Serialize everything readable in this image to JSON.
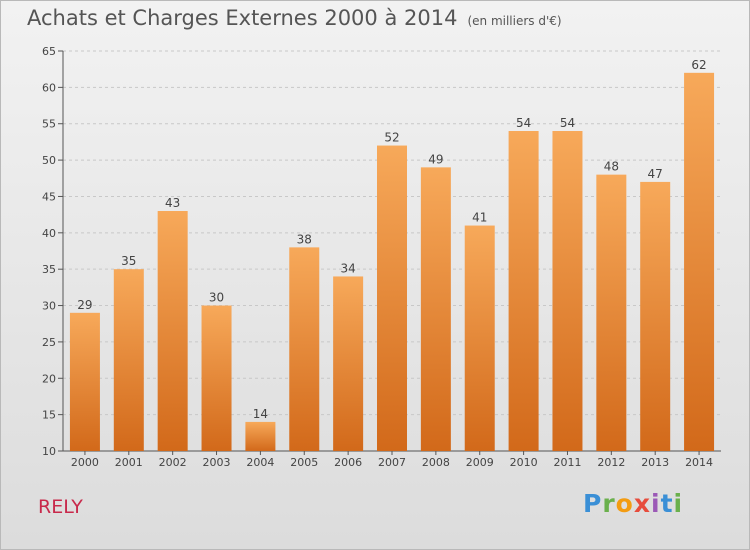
{
  "header": {
    "title": "Achats et Charges Externes 2000 à 2014",
    "subtitle": "(en milliers d'€)"
  },
  "footer": {
    "commune": "RELY",
    "logo_letters": [
      {
        "char": "P",
        "color": "#3a8fd6"
      },
      {
        "char": "r",
        "color": "#6ab04c"
      },
      {
        "char": "o",
        "color": "#f39c12"
      },
      {
        "char": "x",
        "color": "#e74c3c"
      },
      {
        "char": "i",
        "color": "#9b59b6"
      },
      {
        "char": "t",
        "color": "#3a8fd6"
      },
      {
        "char": "i",
        "color": "#6ab04c"
      }
    ]
  },
  "colors": {
    "bar_top": "#f7a95a",
    "bar_bottom": "#d2691a",
    "grid": "#c8c8c8",
    "commune": "#c8294b"
  },
  "chart_data": {
    "type": "bar",
    "title": "Achats et Charges Externes 2000 à 2014",
    "subtitle": "(en milliers d'€)",
    "categories": [
      "2000",
      "2001",
      "2002",
      "2003",
      "2004",
      "2005",
      "2006",
      "2007",
      "2008",
      "2009",
      "2010",
      "2011",
      "2012",
      "2013",
      "2014"
    ],
    "values": [
      29,
      35,
      43,
      30,
      14,
      38,
      34,
      52,
      49,
      41,
      54,
      54,
      48,
      47,
      62
    ],
    "ylim": [
      10,
      65
    ],
    "yticks": [
      10,
      15,
      20,
      25,
      30,
      35,
      40,
      45,
      50,
      55,
      60,
      65
    ],
    "grid": true,
    "xlabel": "",
    "ylabel": ""
  }
}
